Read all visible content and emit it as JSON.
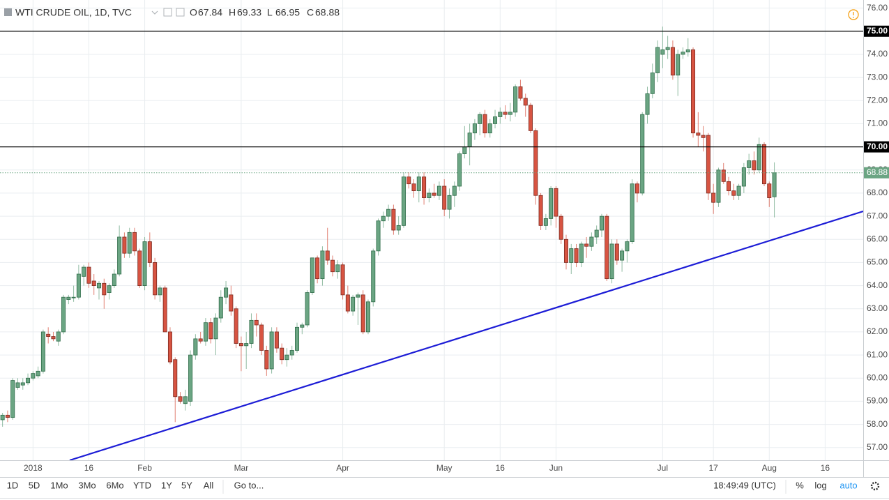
{
  "chart_data": {
    "type": "candlestick",
    "title": "WTI CRUDE OIL, 1D, TVC",
    "ohlc_labels": [
      "O",
      "H",
      "L",
      "C"
    ],
    "categories": [
      null,
      null,
      null,
      null,
      null,
      null,
      "2018",
      null,
      null,
      null,
      null,
      null,
      null,
      null,
      null,
      null,
      null,
      "16",
      null,
      null,
      null,
      null,
      null,
      null,
      null,
      null,
      null,
      null,
      "Feb",
      null,
      null,
      null,
      null,
      null,
      null,
      null,
      null,
      null,
      null,
      null,
      null,
      null,
      null,
      null,
      null,
      null,
      null,
      "Mar",
      null,
      null,
      null,
      null,
      null,
      null,
      null,
      null,
      null,
      null,
      null,
      null,
      null,
      null,
      null,
      null,
      null,
      null,
      null,
      "Apr",
      null,
      null,
      null,
      null,
      null,
      null,
      null,
      null,
      null,
      null,
      null,
      null,
      null,
      null,
      null,
      null,
      null,
      null,
      null,
      "May",
      null,
      null,
      null,
      null,
      null,
      null,
      null,
      null,
      null,
      null,
      "16",
      null,
      null,
      null,
      null,
      null,
      null,
      null,
      null,
      null,
      null,
      "Jun",
      null,
      null,
      null,
      null,
      null,
      null,
      null,
      null,
      null,
      null,
      null,
      null,
      null,
      null,
      null,
      null,
      null,
      null,
      null,
      null,
      "Jul",
      null,
      null,
      null,
      null,
      null,
      null,
      null,
      null,
      null,
      "17",
      null,
      null,
      null,
      null,
      null,
      null,
      null,
      null,
      null,
      null,
      "Aug",
      null,
      null,
      null,
      null,
      null,
      null,
      null,
      null,
      null,
      null,
      "16",
      null,
      null,
      null,
      null,
      null,
      null,
      null
    ],
    "open": [
      58.2,
      58.4,
      58.3,
      59.6,
      59.7,
      59.8,
      60.0,
      60.1,
      60.3,
      61.9,
      61.8,
      61.6,
      62.0,
      63.4,
      63.5,
      63.5,
      64.4,
      64.8,
      64.2,
      63.9,
      64.1,
      63.7,
      64.0,
      64.5,
      66.1,
      65.4,
      66.3,
      65.5,
      64.0,
      65.9,
      65.0,
      63.6,
      63.9,
      62.0,
      60.8,
      59.2,
      58.9,
      59.0,
      61.0,
      61.7,
      61.6,
      62.4,
      61.7,
      62.6,
      63.5,
      63.6,
      63.0,
      61.5,
      61.4,
      61.5,
      62.5,
      62.3,
      61.2,
      60.4,
      62.0,
      61.3,
      60.8,
      61.0,
      61.2,
      62.2,
      62.3,
      63.7,
      65.2,
      64.3,
      65.5,
      65.1,
      64.6,
      64.9,
      63.6,
      62.9,
      63.5,
      63.6,
      62.0,
      63.3,
      65.5,
      66.8,
      67.0,
      67.3,
      66.4,
      66.6,
      68.7,
      68.4,
      68.1,
      68.7,
      67.8,
      68.0,
      67.9,
      68.3,
      67.3,
      67.9,
      68.3,
      69.7,
      70.0,
      70.6,
      71.0,
      71.4,
      70.6,
      71.0,
      71.3,
      71.5,
      71.4,
      71.5,
      72.6,
      72.1,
      71.8,
      70.7,
      67.9,
      66.6,
      66.9,
      68.2,
      67.0,
      66.0,
      65.0,
      65.6,
      65.0,
      65.8,
      65.7,
      66.1,
      66.4,
      67.0,
      64.3,
      65.8,
      65.1,
      65.5,
      65.9,
      68.4,
      68.0,
      71.4,
      72.3,
      73.2,
      74.0,
      74.2,
      74.3,
      73.1,
      74.0,
      74.1,
      74.2,
      70.6,
      70.5,
      70.5,
      68.0,
      67.6,
      69.0,
      68.5,
      68.1,
      67.9,
      68.3,
      69.1,
      69.4,
      69.0,
      70.1,
      68.4,
      67.84,
      null,
      null,
      null,
      null,
      null,
      null,
      null,
      null,
      null,
      null,
      null,
      null,
      null,
      null,
      null,
      null,
      null
    ],
    "high": [
      58.5,
      58.6,
      60.0,
      60.0,
      60.0,
      60.2,
      60.3,
      60.5,
      62.1,
      62.2,
      62.0,
      62.1,
      63.6,
      63.6,
      64.0,
      64.9,
      64.9,
      65.0,
      64.5,
      64.2,
      64.3,
      64.1,
      64.7,
      66.6,
      66.3,
      66.5,
      66.5,
      65.6,
      66.1,
      66.3,
      65.2,
      64.0,
      64.0,
      62.2,
      60.9,
      59.4,
      59.5,
      61.2,
      61.9,
      62.0,
      62.6,
      62.6,
      62.8,
      63.8,
      64.2,
      64.0,
      63.1,
      61.8,
      62.0,
      62.8,
      62.8,
      62.4,
      61.4,
      62.2,
      62.2,
      61.5,
      61.3,
      61.4,
      62.4,
      62.4,
      63.8,
      65.2,
      65.3,
      65.7,
      66.5,
      65.3,
      65.1,
      65.0,
      64.0,
      63.6,
      63.7,
      63.8,
      63.4,
      65.6,
      66.9,
      67.2,
      67.5,
      67.5,
      67.0,
      68.9,
      68.9,
      68.6,
      68.9,
      68.9,
      68.2,
      68.4,
      68.5,
      68.6,
      68.2,
      68.5,
      69.8,
      70.9,
      71.0,
      71.2,
      71.5,
      71.6,
      71.2,
      71.6,
      71.7,
      71.8,
      71.9,
      72.7,
      72.9,
      72.3,
      71.9,
      70.8,
      68.0,
      67.1,
      68.3,
      68.3,
      67.1,
      66.2,
      65.8,
      65.8,
      65.9,
      66.1,
      66.3,
      66.6,
      67.1,
      67.1,
      66.0,
      66.0,
      65.6,
      66.0,
      68.6,
      68.5,
      71.5,
      72.6,
      73.6,
      74.6,
      75.2,
      74.8,
      74.6,
      74.2,
      74.3,
      74.7,
      74.3,
      71.5,
      70.9,
      70.6,
      68.4,
      69.1,
      69.3,
      68.7,
      68.4,
      68.4,
      69.3,
      69.7,
      69.8,
      70.4,
      70.2,
      68.5,
      69.33,
      null,
      null,
      null,
      null,
      null,
      null,
      null,
      null,
      null,
      null,
      null,
      null,
      null,
      null,
      null,
      null,
      null
    ],
    "low": [
      57.9,
      58.1,
      58.2,
      59.5,
      59.5,
      59.7,
      59.9,
      60.0,
      60.2,
      61.5,
      61.6,
      61.4,
      61.9,
      63.2,
      63.3,
      63.4,
      64.0,
      63.9,
      63.6,
      63.4,
      63.0,
      63.4,
      63.9,
      64.4,
      65.2,
      65.2,
      65.3,
      63.9,
      63.8,
      64.8,
      63.4,
      63.3,
      62.0,
      60.6,
      58.1,
      58.9,
      58.6,
      58.8,
      60.8,
      61.5,
      61.4,
      61.5,
      61.0,
      62.4,
      63.2,
      62.7,
      61.3,
      60.3,
      60.4,
      61.3,
      61.8,
      61.0,
      60.1,
      60.2,
      61.1,
      60.6,
      60.5,
      60.8,
      61.1,
      61.9,
      62.2,
      63.6,
      64.1,
      64.0,
      64.9,
      64.4,
      64.3,
      63.4,
      62.8,
      62.7,
      62.3,
      61.9,
      61.9,
      63.1,
      65.3,
      66.5,
      66.8,
      66.2,
      66.2,
      66.5,
      68.2,
      67.8,
      67.6,
      67.5,
      67.6,
      67.8,
      67.7,
      67.0,
      66.9,
      67.4,
      68.1,
      69.5,
      69.2,
      70.3,
      70.5,
      70.4,
      70.4,
      70.8,
      71.0,
      71.2,
      71.1,
      71.3,
      72.0,
      71.3,
      70.6,
      67.5,
      66.4,
      66.4,
      66.6,
      66.5,
      65.8,
      64.7,
      64.5,
      64.8,
      64.8,
      65.2,
      65.5,
      65.8,
      66.1,
      64.2,
      64.1,
      64.9,
      64.6,
      65.0,
      65.8,
      67.6,
      67.9,
      71.0,
      72.1,
      72.8,
      73.4,
      73.8,
      72.9,
      72.2,
      73.8,
      73.9,
      70.4,
      70.0,
      69.8,
      67.7,
      67.1,
      67.4,
      68.4,
      67.9,
      67.7,
      67.7,
      68.0,
      68.8,
      68.8,
      68.9,
      68.3,
      67.4,
      66.95,
      null,
      null,
      null,
      null,
      null,
      null,
      null,
      null,
      null,
      null,
      null,
      null,
      null,
      null,
      null,
      null,
      null
    ],
    "close": [
      58.4,
      58.3,
      59.9,
      59.8,
      59.8,
      60.0,
      60.2,
      60.3,
      62.0,
      61.8,
      61.7,
      62.0,
      63.5,
      63.5,
      63.5,
      64.5,
      64.8,
      64.1,
      64.0,
      64.1,
      63.6,
      64.0,
      64.5,
      66.1,
      65.4,
      66.3,
      65.5,
      64.0,
      65.9,
      65.0,
      63.6,
      63.9,
      62.0,
      60.7,
      59.2,
      59.0,
      59.2,
      61.0,
      61.7,
      61.6,
      62.4,
      61.7,
      62.6,
      63.5,
      63.9,
      62.9,
      61.5,
      61.4,
      61.5,
      62.5,
      62.3,
      61.2,
      60.4,
      62.0,
      61.3,
      60.8,
      61.0,
      61.2,
      62.2,
      62.3,
      63.7,
      65.2,
      64.3,
      65.5,
      65.1,
      64.6,
      64.9,
      63.6,
      62.9,
      63.5,
      63.6,
      62.0,
      63.3,
      65.5,
      66.8,
      67.0,
      67.3,
      66.4,
      66.6,
      68.7,
      68.4,
      68.1,
      68.7,
      67.8,
      68.0,
      67.9,
      68.3,
      67.3,
      67.9,
      68.3,
      69.7,
      70.0,
      70.6,
      71.0,
      71.4,
      70.6,
      71.0,
      71.3,
      71.5,
      71.4,
      71.5,
      72.6,
      72.1,
      71.8,
      70.7,
      67.9,
      66.6,
      66.9,
      68.2,
      67.0,
      66.0,
      65.0,
      65.6,
      65.0,
      65.8,
      65.7,
      66.1,
      66.4,
      67.0,
      64.3,
      65.8,
      65.1,
      65.5,
      65.9,
      68.4,
      68.0,
      71.4,
      72.3,
      73.2,
      74.3,
      74.2,
      74.3,
      73.1,
      74.0,
      74.1,
      74.2,
      70.6,
      70.5,
      70.4,
      68.0,
      67.6,
      69.0,
      68.5,
      68.1,
      67.9,
      68.3,
      69.1,
      69.4,
      69.0,
      70.1,
      68.4,
      67.8,
      68.88,
      null,
      null,
      null,
      null,
      null,
      null,
      null,
      null,
      null,
      null,
      null,
      null,
      null,
      null,
      null,
      null,
      null
    ],
    "up_color": "#6ba583",
    "down_color": "#d75442",
    "ylim": [
      56.45,
      76.35
    ],
    "yticks": [
      {
        "value": 57,
        "label": "57.00"
      },
      {
        "value": 58,
        "label": "58.00"
      },
      {
        "value": 59,
        "label": "59.00"
      },
      {
        "value": 60,
        "label": "60.00"
      },
      {
        "value": 61,
        "label": "61.00"
      },
      {
        "value": 62,
        "label": "62.00"
      },
      {
        "value": 63,
        "label": "63.00"
      },
      {
        "value": 64,
        "label": "64.00"
      },
      {
        "value": 65,
        "label": "65.00"
      },
      {
        "value": 66,
        "label": "66.00"
      },
      {
        "value": 67,
        "label": "67.00"
      },
      {
        "value": 68,
        "label": "68.00"
      },
      {
        "value": 69,
        "label": "69.00"
      },
      {
        "value": 70,
        "label": "70.00"
      },
      {
        "value": 71,
        "label": "71.00"
      },
      {
        "value": 72,
        "label": "72.00"
      },
      {
        "value": 73,
        "label": "73.00"
      },
      {
        "value": 74,
        "label": "74.00"
      },
      {
        "value": 75,
        "label": "75.00"
      },
      {
        "value": 76,
        "label": "76.00"
      }
    ],
    "grid": true,
    "hlines": [
      {
        "value": 75,
        "label": "75.00"
      },
      {
        "value": 70,
        "label": "70.00"
      }
    ],
    "hline_color": "#000000",
    "last_price_color": "#6ba583"
  },
  "toolbar": {
    "ranges": [
      "1D",
      "5D",
      "1Mo",
      "3Mo",
      "6Mo",
      "YTD",
      "1Y",
      "5Y",
      "All"
    ],
    "goto": "Go to...",
    "time": "18:49:49 (UTC)",
    "percent": "%",
    "log": "log",
    "auto": "auto"
  }
}
